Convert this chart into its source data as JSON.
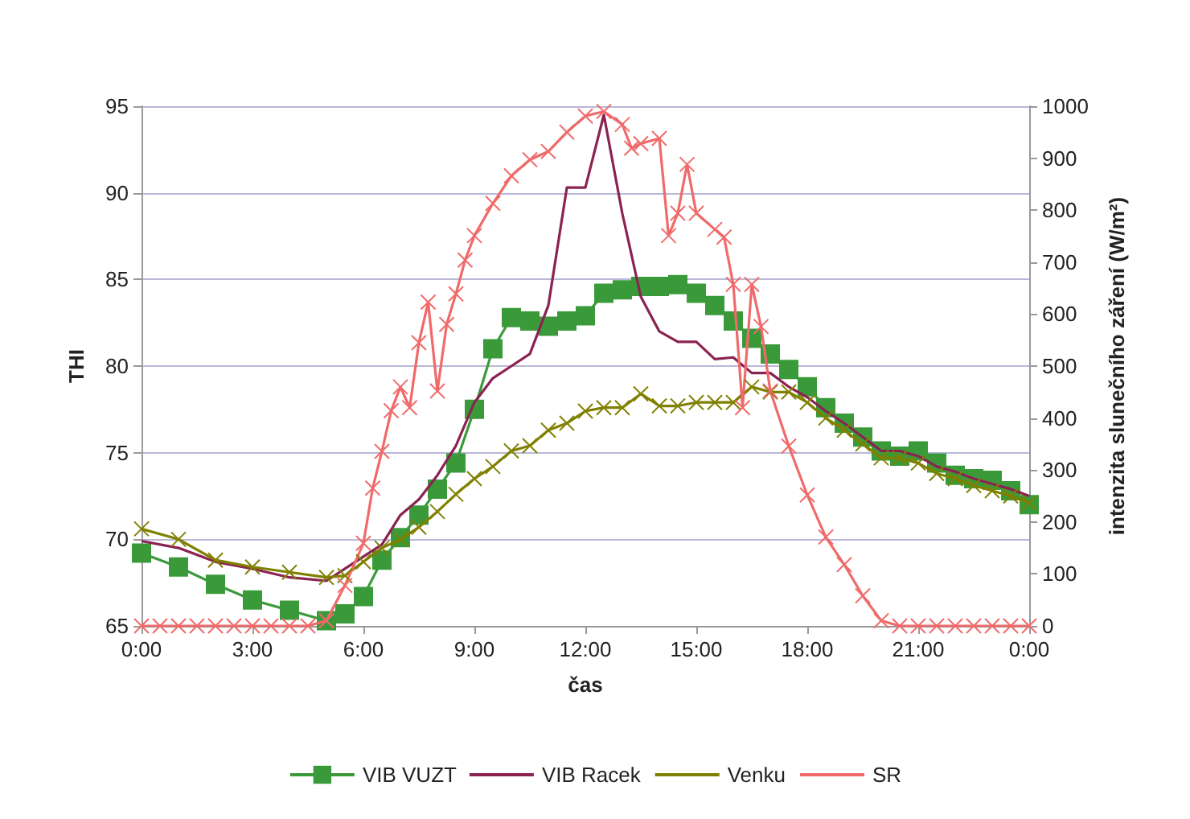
{
  "chart_data": {
    "type": "line",
    "xlabel": "čas",
    "ylabel": "THI",
    "y2label": "intenzita slunečního záření (W/m²)",
    "x": [
      0,
      1,
      2,
      3,
      4,
      5,
      5.5,
      6,
      6.5,
      7,
      7.5,
      8,
      8.5,
      9,
      9.5,
      10,
      10.5,
      11,
      11.5,
      12,
      12.5,
      13,
      13.5,
      14,
      14.5,
      15,
      15.5,
      16,
      16.5,
      17,
      17.5,
      18,
      18.5,
      19,
      19.5,
      20,
      20.5,
      21,
      21.5,
      22,
      22.5,
      23,
      23.5,
      24
    ],
    "series": [
      {
        "name": "VIB VUZT",
        "color": "#3a9a3a",
        "marker": "square",
        "values": [
          69.2,
          68.4,
          67.4,
          66.5,
          65.9,
          65.3,
          65.7,
          66.7,
          68.8,
          70.1,
          71.4,
          72.9,
          74.4,
          77.5,
          81,
          82.8,
          82.6,
          82.3,
          82.6,
          82.9,
          84.2,
          84.4,
          84.6,
          84.6,
          84.7,
          84.2,
          83.5,
          82.6,
          81.6,
          80.7,
          79.8,
          78.8,
          77.6,
          76.7,
          75.9,
          75.1,
          74.8,
          75.1,
          74.4,
          73.7,
          73.5,
          73.4,
          72.8,
          72
        ]
      },
      {
        "name": "VIB Racek",
        "color": "#8b2252",
        "marker": "none",
        "values": [
          69.9,
          69.5,
          68.7,
          68.3,
          67.8,
          67.6,
          68.3,
          69,
          69.7,
          71.4,
          72.3,
          73.7,
          75.4,
          77.9,
          79.3,
          80,
          80.7,
          83.5,
          90.3,
          90.3,
          94.5,
          88.8,
          84,
          82,
          81.4,
          81.4,
          80.4,
          80.5,
          79.6,
          79.6,
          78.8,
          78.2,
          77.4,
          76.7,
          75.9,
          75.1,
          75.1,
          74.8,
          74.2,
          73.9,
          73.5,
          73.2,
          72.9,
          72.5
        ]
      },
      {
        "name": "Venku",
        "color": "#808000",
        "marker": "cross",
        "values": [
          70.6,
          70,
          68.8,
          68.4,
          68.1,
          67.8,
          67.9,
          68.7,
          69.5,
          70,
          70.7,
          71.6,
          72.6,
          73.5,
          74.2,
          75.1,
          75.4,
          76.3,
          76.7,
          77.4,
          77.6,
          77.6,
          78.4,
          77.7,
          77.7,
          77.9,
          77.9,
          77.9,
          78.8,
          78.5,
          78.5,
          77.9,
          77.0,
          76.3,
          75.5,
          74.7,
          74.7,
          74.4,
          73.8,
          73.5,
          73.1,
          72.8,
          72.5,
          72.1
        ]
      },
      {
        "name": "SR",
        "color": "#f06a6a",
        "marker": "cross",
        "axis": "y2",
        "x": [
          0,
          0.5,
          1,
          1.5,
          2,
          2.5,
          3,
          3.5,
          4,
          4.5,
          5,
          5.5,
          6,
          6.25,
          6.5,
          6.75,
          7,
          7.25,
          7.5,
          7.75,
          8,
          8.25,
          8.5,
          8.75,
          9,
          9.5,
          10,
          10.5,
          11,
          11.5,
          12,
          12.5,
          13,
          13.25,
          13.5,
          14,
          14.25,
          14.5,
          14.75,
          15,
          15.5,
          15.75,
          16,
          16.25,
          16.5,
          16.75,
          17,
          17.5,
          18,
          18.5,
          19,
          19.5,
          20,
          20.5,
          21,
          21.5,
          22,
          22.5,
          23,
          23.5,
          24
        ],
        "values": [
          0,
          0,
          0,
          0,
          0,
          0,
          0,
          0,
          0,
          0,
          10,
          78,
          159,
          265,
          336,
          414,
          460,
          420,
          545,
          623,
          452,
          580,
          639,
          704,
          751,
          813,
          866,
          897,
          913,
          950,
          981,
          990,
          965,
          919,
          928,
          938,
          751,
          794,
          888,
          794,
          763,
          748,
          657,
          420,
          657,
          576,
          452,
          346,
          252,
          171,
          118,
          58,
          10,
          0,
          0,
          0,
          0,
          0,
          0,
          0,
          0
        ]
      }
    ],
    "xlim": [
      0,
      24
    ],
    "xticks": [
      {
        "value": 0,
        "label": "0:00"
      },
      {
        "value": 3,
        "label": "3:00"
      },
      {
        "value": 6,
        "label": "6:00"
      },
      {
        "value": 9,
        "label": "9:00"
      },
      {
        "value": 12,
        "label": "12:00"
      },
      {
        "value": 15,
        "label": "15:00"
      },
      {
        "value": 18,
        "label": "18:00"
      },
      {
        "value": 21,
        "label": "21:00"
      },
      {
        "value": 24,
        "label": "0:00"
      }
    ],
    "ylim": [
      65,
      95
    ],
    "yticks": [
      65,
      70,
      75,
      80,
      85,
      90,
      95
    ],
    "y2lim": [
      0,
      1000
    ],
    "y2ticks": [
      0,
      100,
      200,
      300,
      400,
      500,
      600,
      700,
      800,
      900,
      1000
    ],
    "grid": "y",
    "legend": "bottom"
  }
}
